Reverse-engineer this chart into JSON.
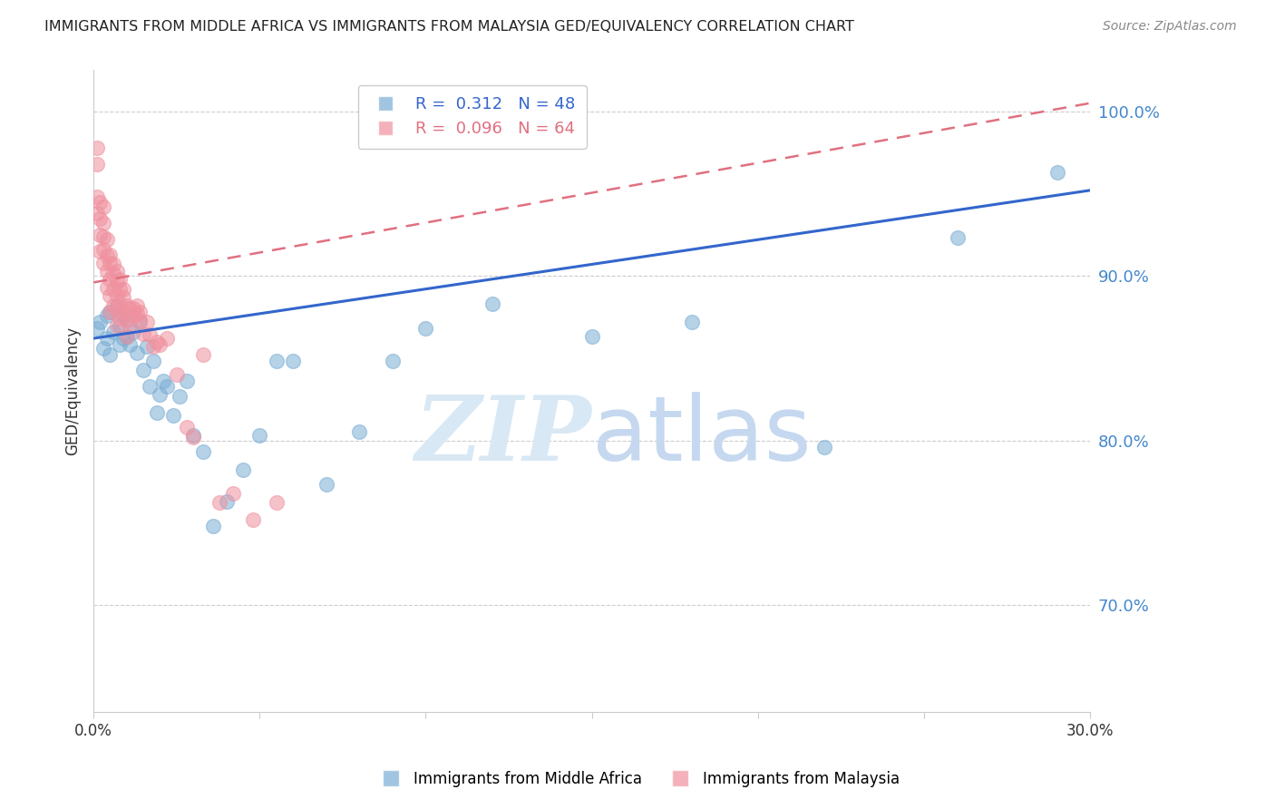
{
  "title": "IMMIGRANTS FROM MIDDLE AFRICA VS IMMIGRANTS FROM MALAYSIA GED/EQUIVALENCY CORRELATION CHART",
  "source": "Source: ZipAtlas.com",
  "ylabel": "GED/Equivalency",
  "ylim": [
    0.635,
    1.025
  ],
  "xlim": [
    0.0,
    0.3
  ],
  "blue_color": "#7aadd4",
  "pink_color": "#f0919f",
  "blue_line_color": "#3366cc",
  "pink_line_color": "#e07080",
  "watermark_color": "#ddeeff",
  "R_blue": 0.312,
  "N_blue": 48,
  "R_pink": 0.096,
  "N_pink": 64,
  "blue_scatter_x": [
    0.001,
    0.002,
    0.003,
    0.004,
    0.004,
    0.005,
    0.005,
    0.006,
    0.007,
    0.008,
    0.008,
    0.009,
    0.009,
    0.01,
    0.01,
    0.011,
    0.012,
    0.013,
    0.014,
    0.015,
    0.016,
    0.017,
    0.018,
    0.019,
    0.02,
    0.021,
    0.022,
    0.024,
    0.026,
    0.028,
    0.03,
    0.033,
    0.036,
    0.04,
    0.045,
    0.05,
    0.055,
    0.06,
    0.07,
    0.08,
    0.09,
    0.1,
    0.12,
    0.15,
    0.18,
    0.22,
    0.26,
    0.29
  ],
  "blue_scatter_y": [
    0.868,
    0.872,
    0.856,
    0.876,
    0.862,
    0.852,
    0.878,
    0.866,
    0.882,
    0.87,
    0.858,
    0.876,
    0.862,
    0.874,
    0.863,
    0.858,
    0.866,
    0.853,
    0.872,
    0.843,
    0.857,
    0.833,
    0.848,
    0.817,
    0.828,
    0.836,
    0.833,
    0.815,
    0.827,
    0.836,
    0.803,
    0.793,
    0.748,
    0.763,
    0.782,
    0.803,
    0.848,
    0.848,
    0.773,
    0.805,
    0.848,
    0.868,
    0.883,
    0.863,
    0.872,
    0.796,
    0.923,
    0.963
  ],
  "pink_scatter_x": [
    0.001,
    0.001,
    0.001,
    0.001,
    0.002,
    0.002,
    0.002,
    0.002,
    0.003,
    0.003,
    0.003,
    0.003,
    0.003,
    0.004,
    0.004,
    0.004,
    0.004,
    0.005,
    0.005,
    0.005,
    0.005,
    0.005,
    0.006,
    0.006,
    0.006,
    0.006,
    0.007,
    0.007,
    0.007,
    0.007,
    0.007,
    0.008,
    0.008,
    0.008,
    0.008,
    0.009,
    0.009,
    0.009,
    0.01,
    0.01,
    0.01,
    0.011,
    0.011,
    0.012,
    0.012,
    0.013,
    0.013,
    0.014,
    0.014,
    0.015,
    0.016,
    0.017,
    0.018,
    0.019,
    0.02,
    0.022,
    0.025,
    0.028,
    0.03,
    0.033,
    0.038,
    0.042,
    0.048,
    0.055
  ],
  "pink_scatter_y": [
    0.978,
    0.968,
    0.948,
    0.938,
    0.945,
    0.935,
    0.925,
    0.915,
    0.942,
    0.932,
    0.924,
    0.916,
    0.908,
    0.922,
    0.912,
    0.903,
    0.893,
    0.913,
    0.908,
    0.898,
    0.888,
    0.878,
    0.907,
    0.901,
    0.892,
    0.882,
    0.903,
    0.897,
    0.888,
    0.879,
    0.87,
    0.898,
    0.892,
    0.883,
    0.874,
    0.892,
    0.887,
    0.878,
    0.882,
    0.873,
    0.863,
    0.88,
    0.87,
    0.88,
    0.876,
    0.882,
    0.877,
    0.878,
    0.873,
    0.865,
    0.872,
    0.864,
    0.857,
    0.86,
    0.858,
    0.862,
    0.84,
    0.808,
    0.802,
    0.852,
    0.762,
    0.768,
    0.752,
    0.762
  ],
  "blue_line_x0": 0.0,
  "blue_line_y0": 0.862,
  "blue_line_x1": 0.3,
  "blue_line_y1": 0.952,
  "pink_line_x0": 0.0,
  "pink_line_y0": 0.896,
  "pink_line_x1": 0.3,
  "pink_line_y1": 1.005
}
